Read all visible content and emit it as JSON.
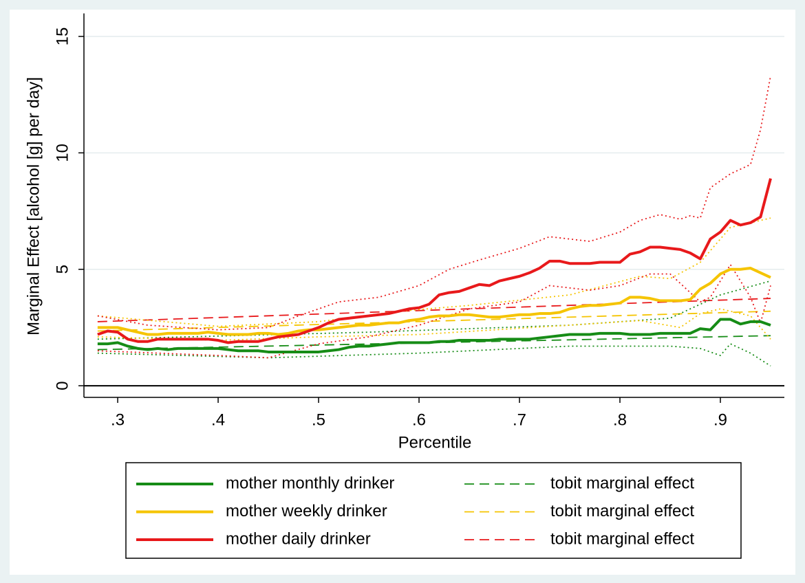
{
  "chart_data": {
    "type": "line",
    "xlabel": "Percentile",
    "ylabel": "Marginal Effect [alcohol [g] per day]",
    "x": [
      0.28,
      0.29,
      0.3,
      0.31,
      0.32,
      0.33,
      0.34,
      0.35,
      0.36,
      0.37,
      0.38,
      0.39,
      0.4,
      0.41,
      0.42,
      0.43,
      0.44,
      0.45,
      0.46,
      0.47,
      0.48,
      0.49,
      0.5,
      0.51,
      0.52,
      0.53,
      0.54,
      0.55,
      0.56,
      0.57,
      0.58,
      0.59,
      0.6,
      0.61,
      0.62,
      0.63,
      0.64,
      0.65,
      0.66,
      0.67,
      0.68,
      0.69,
      0.7,
      0.71,
      0.72,
      0.73,
      0.74,
      0.75,
      0.76,
      0.77,
      0.78,
      0.79,
      0.8,
      0.81,
      0.82,
      0.83,
      0.84,
      0.85,
      0.86,
      0.87,
      0.88,
      0.89,
      0.9,
      0.91,
      0.92,
      0.93,
      0.94,
      0.95
    ],
    "xlim": [
      0.2664,
      0.9637
    ],
    "ylim": [
      -0.5,
      15.9
    ],
    "xticks": [
      {
        "value": 0.3,
        "label": ".3"
      },
      {
        "value": 0.4,
        "label": ".4"
      },
      {
        "value": 0.5,
        "label": ".5"
      },
      {
        "value": 0.6,
        "label": ".6"
      },
      {
        "value": 0.7,
        "label": ".7"
      },
      {
        "value": 0.8,
        "label": ".8"
      },
      {
        "value": 0.9,
        "label": ".9"
      }
    ],
    "yticks": [
      0,
      5,
      10,
      15
    ],
    "grid": true,
    "legend": {
      "columns": 2
    },
    "series": [
      {
        "name": "mother monthly drinker",
        "color": "#168c16",
        "style": "solid",
        "values": [
          1.8,
          1.8,
          1.85,
          1.7,
          1.6,
          1.55,
          1.6,
          1.55,
          1.6,
          1.6,
          1.6,
          1.6,
          1.6,
          1.55,
          1.5,
          1.5,
          1.5,
          1.45,
          1.45,
          1.45,
          1.45,
          1.45,
          1.45,
          1.5,
          1.55,
          1.65,
          1.7,
          1.7,
          1.75,
          1.8,
          1.85,
          1.85,
          1.85,
          1.85,
          1.9,
          1.9,
          1.95,
          1.95,
          1.95,
          1.95,
          2.0,
          2.0,
          2.0,
          2.0,
          2.05,
          2.1,
          2.15,
          2.2,
          2.2,
          2.2,
          2.25,
          2.25,
          2.25,
          2.2,
          2.2,
          2.2,
          2.25,
          2.25,
          2.25,
          2.25,
          2.45,
          2.4,
          2.85,
          2.85,
          2.65,
          2.75,
          2.75,
          2.6
        ]
      },
      {
        "name": "mother weekly drinker",
        "color": "#f5c400",
        "style": "solid",
        "values": [
          2.5,
          2.5,
          2.5,
          2.4,
          2.3,
          2.2,
          2.2,
          2.25,
          2.25,
          2.25,
          2.25,
          2.3,
          2.25,
          2.2,
          2.2,
          2.2,
          2.25,
          2.25,
          2.2,
          2.25,
          2.35,
          2.4,
          2.4,
          2.45,
          2.5,
          2.55,
          2.6,
          2.6,
          2.65,
          2.7,
          2.7,
          2.8,
          2.85,
          2.95,
          3.0,
          3.0,
          3.05,
          3.05,
          3.0,
          2.95,
          2.95,
          3.0,
          3.05,
          3.05,
          3.1,
          3.1,
          3.15,
          3.3,
          3.4,
          3.45,
          3.45,
          3.5,
          3.55,
          3.8,
          3.8,
          3.75,
          3.65,
          3.65,
          3.65,
          3.7,
          4.15,
          4.4,
          4.8,
          5.0,
          5.0,
          5.05,
          4.85,
          4.65
        ]
      },
      {
        "name": "mother daily drinker",
        "color": "#e8191b",
        "style": "solid",
        "values": [
          2.2,
          2.35,
          2.3,
          2.0,
          1.9,
          1.9,
          2.0,
          2.0,
          2.0,
          2.0,
          2.0,
          2.0,
          1.95,
          1.85,
          1.9,
          1.9,
          1.9,
          2.0,
          2.1,
          2.15,
          2.2,
          2.35,
          2.5,
          2.7,
          2.85,
          2.9,
          2.95,
          3.0,
          3.05,
          3.1,
          3.2,
          3.3,
          3.35,
          3.5,
          3.9,
          4.0,
          4.05,
          4.2,
          4.35,
          4.3,
          4.5,
          4.6,
          4.7,
          4.85,
          5.05,
          5.35,
          5.35,
          5.25,
          5.25,
          5.25,
          5.3,
          5.3,
          5.3,
          5.65,
          5.75,
          5.95,
          5.95,
          5.9,
          5.85,
          5.7,
          5.45,
          6.3,
          6.6,
          7.1,
          6.9,
          7.0,
          7.25,
          8.9
        ]
      },
      {
        "name": "tobit marginal effect",
        "color": "#168c16",
        "style": "dashed",
        "x": [
          0.28,
          0.95
        ],
        "values": [
          1.55,
          2.15
        ]
      },
      {
        "name": "tobit marginal effect",
        "color": "#f5c400",
        "style": "dashed",
        "x": [
          0.28,
          0.95
        ],
        "values": [
          2.35,
          3.2
        ]
      },
      {
        "name": "tobit marginal effect",
        "color": "#e8191b",
        "style": "dashed",
        "x": [
          0.28,
          0.95
        ],
        "values": [
          2.75,
          3.75
        ]
      },
      {
        "color": "#168c16",
        "style": "dotted",
        "x": [
          0.28,
          0.55,
          0.75,
          0.85,
          0.9,
          0.95
        ],
        "values": [
          2.0,
          2.3,
          2.6,
          2.9,
          3.9,
          4.5
        ]
      },
      {
        "color": "#168c16",
        "style": "dotted",
        "x": [
          0.28,
          0.45,
          0.6,
          0.75,
          0.85,
          0.88,
          0.9,
          0.91,
          0.93,
          0.95
        ],
        "values": [
          1.4,
          1.2,
          1.4,
          1.7,
          1.7,
          1.6,
          1.3,
          1.8,
          1.4,
          0.85
        ]
      },
      {
        "color": "#f5c400",
        "style": "dotted",
        "x": [
          0.28,
          0.4,
          0.5,
          0.58,
          0.65,
          0.75,
          0.82,
          0.85,
          0.88,
          0.91,
          0.95
        ],
        "values": [
          3.0,
          2.55,
          2.75,
          3.2,
          3.45,
          3.9,
          4.7,
          4.6,
          5.3,
          6.8,
          7.2
        ]
      },
      {
        "color": "#f5c400",
        "style": "dotted",
        "x": [
          0.28,
          0.4,
          0.5,
          0.6,
          0.75,
          0.82,
          0.86,
          0.88,
          0.9,
          0.93,
          0.95
        ],
        "values": [
          2.1,
          1.95,
          2.1,
          2.2,
          2.6,
          2.8,
          2.5,
          3.1,
          3.3,
          3.0,
          2.0
        ]
      },
      {
        "color": "#e8191b",
        "style": "dotted",
        "x": [
          0.28,
          0.33,
          0.4,
          0.45,
          0.48,
          0.52,
          0.56,
          0.6,
          0.63,
          0.66,
          0.7,
          0.73,
          0.77,
          0.8,
          0.82,
          0.84,
          0.86,
          0.87,
          0.88,
          0.89,
          0.91,
          0.93,
          0.94,
          0.95
        ],
        "values": [
          3.0,
          2.6,
          2.4,
          2.5,
          3.0,
          3.6,
          3.8,
          4.3,
          5.0,
          5.4,
          5.9,
          6.4,
          6.2,
          6.6,
          7.1,
          7.35,
          7.15,
          7.3,
          7.2,
          8.5,
          9.1,
          9.5,
          11,
          13.3
        ]
      },
      {
        "color": "#e8191b",
        "style": "dotted",
        "x": [
          0.28,
          0.4,
          0.45,
          0.5,
          0.55,
          0.6,
          0.65,
          0.7,
          0.73,
          0.77,
          0.8,
          0.83,
          0.85,
          0.88,
          0.89,
          0.91,
          0.93,
          0.94,
          0.95
        ],
        "values": [
          1.5,
          1.3,
          1.2,
          1.8,
          2.1,
          2.6,
          3.3,
          3.6,
          4.3,
          4.1,
          4.3,
          4.8,
          4.8,
          3.6,
          3.8,
          5.2,
          3.8,
          2.7,
          4.3
        ]
      }
    ]
  }
}
